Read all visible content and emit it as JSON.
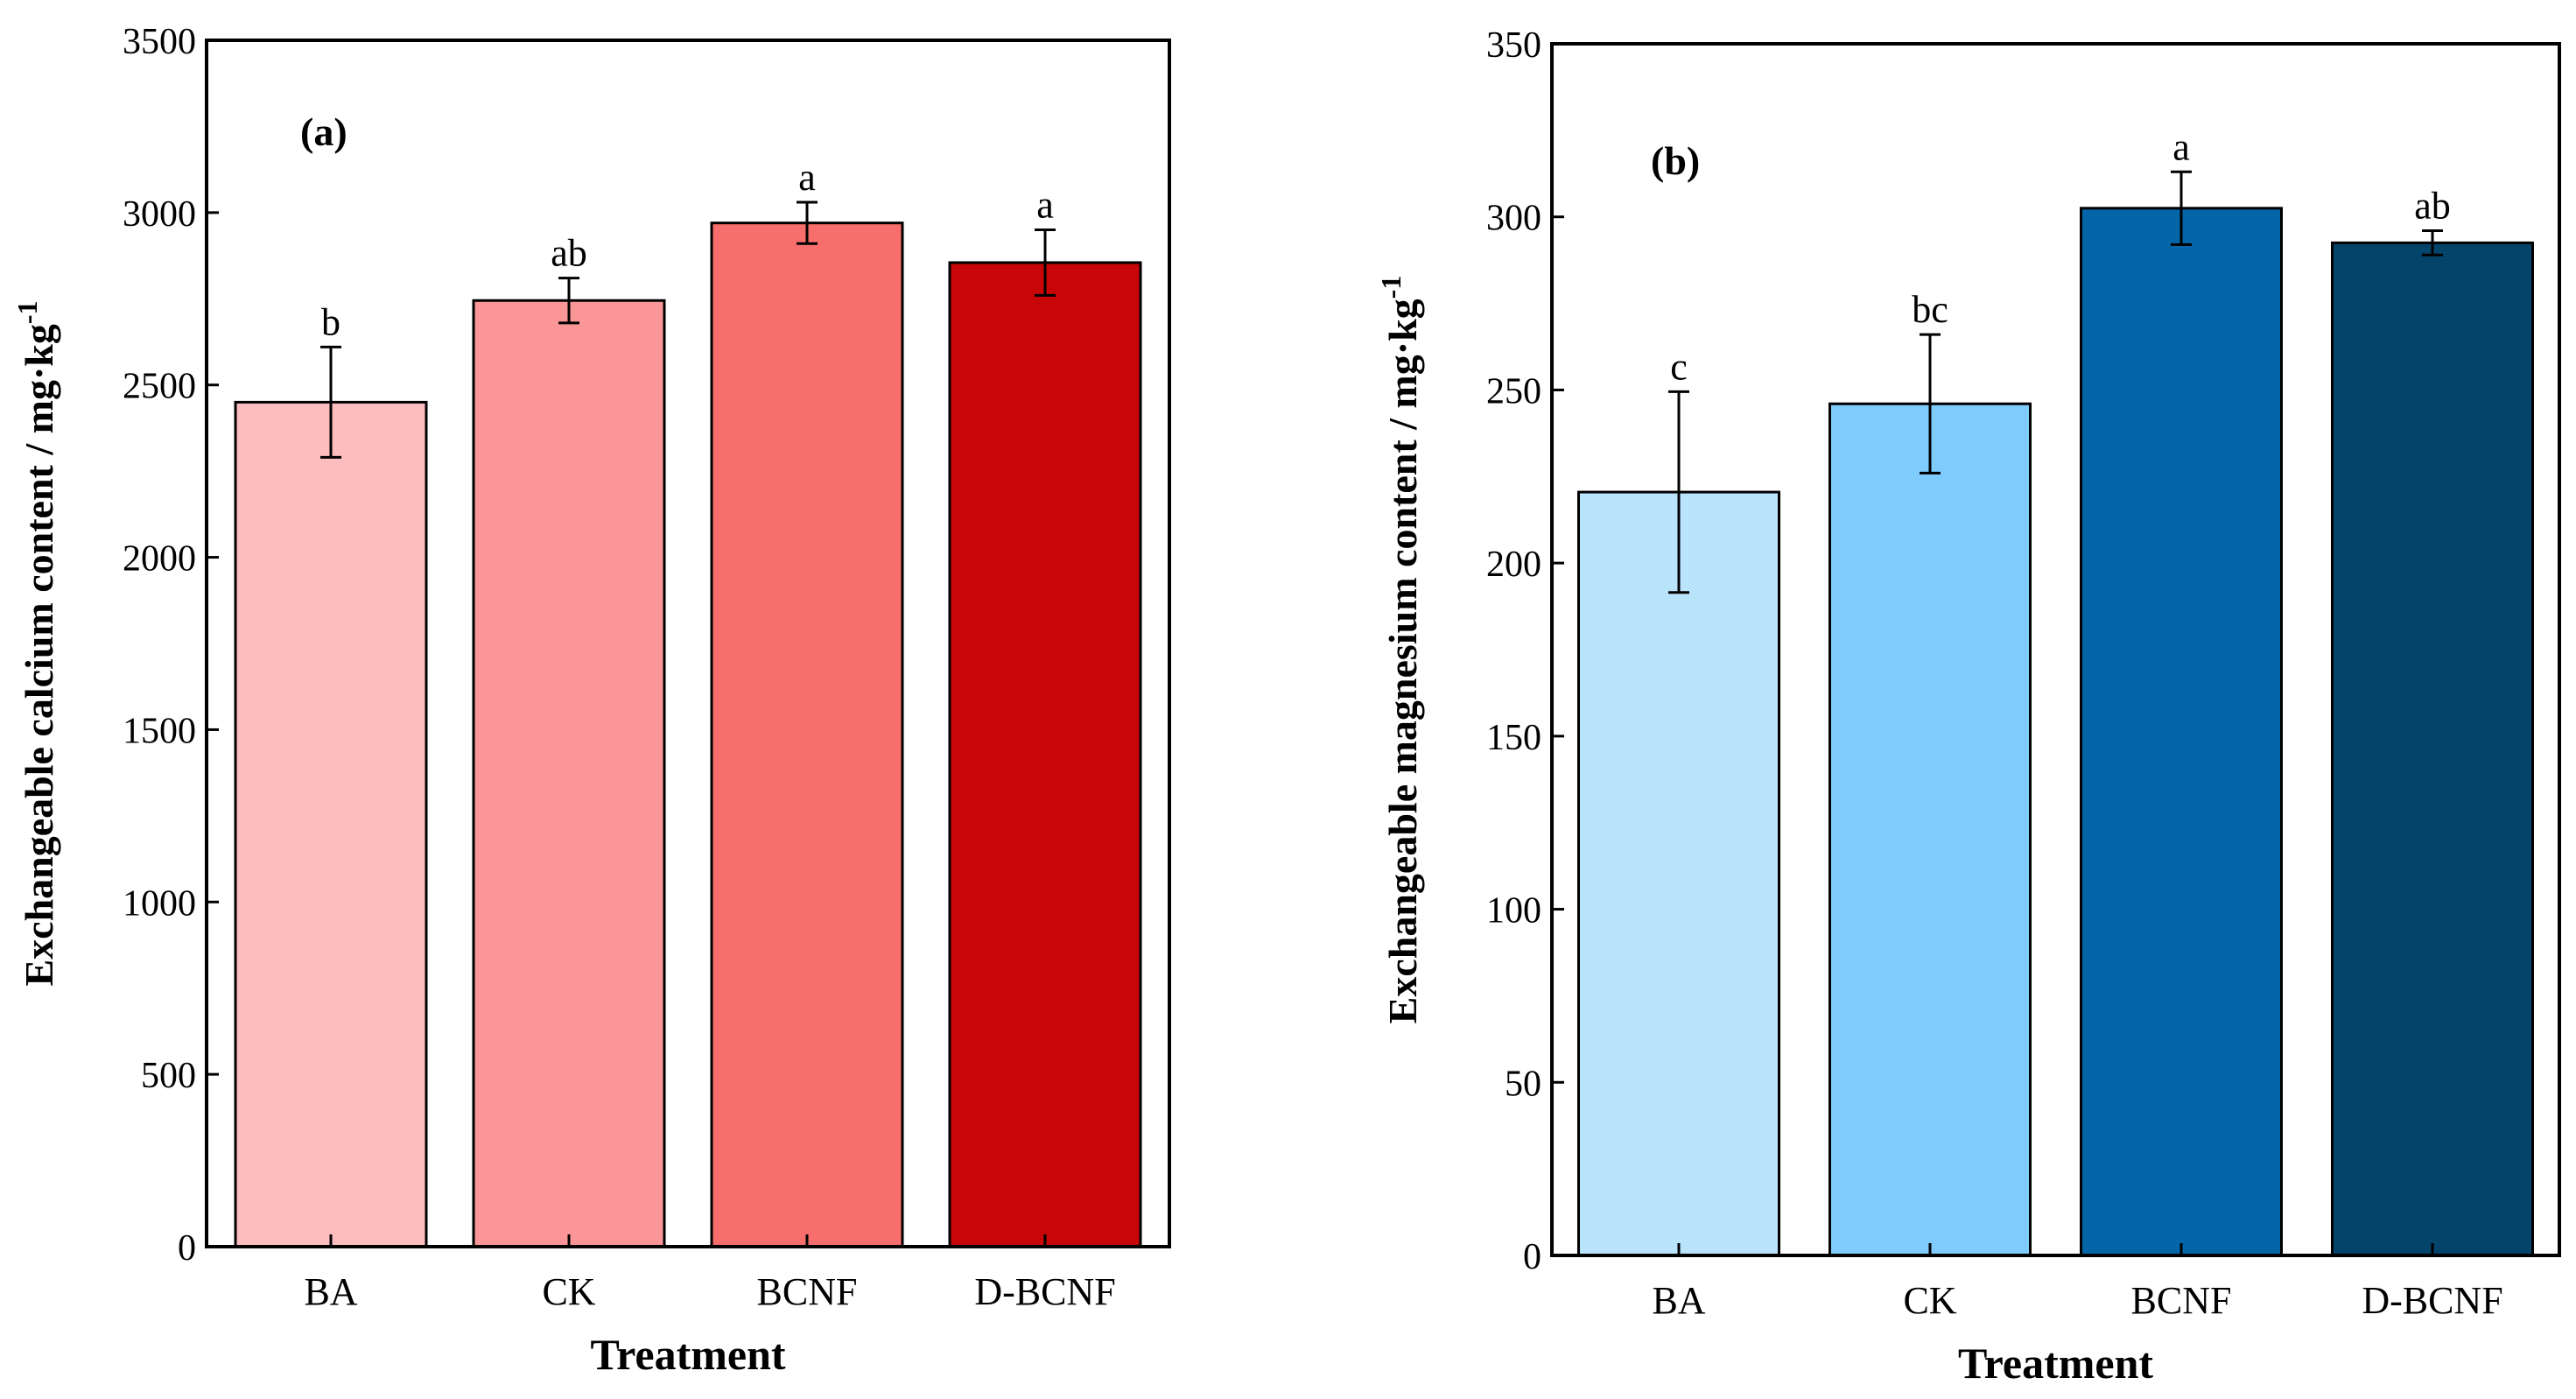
{
  "chart_data": [
    {
      "type": "bar",
      "panel_label": "(a)",
      "categories": [
        "BA",
        "CK",
        "BCNF",
        "D-BCNF"
      ],
      "values": [
        2450,
        2745,
        2970,
        2855
      ],
      "errors": [
        160,
        65,
        60,
        95
      ],
      "significance": [
        "b",
        "ab",
        "a",
        "a"
      ],
      "colors": [
        "#FCBDBE",
        "#FA9697",
        "#F76E6D",
        "#C80608"
      ],
      "xlabel": "Treatment",
      "ylabel_main": "Exchangeable calcium content / mg·kg",
      "ylabel_sup": "-1",
      "ylim": [
        0,
        3500
      ],
      "yticks": [
        "0",
        "500",
        "1000",
        "1500",
        "2000",
        "2500",
        "3000",
        "3500"
      ]
    },
    {
      "type": "bar",
      "panel_label": "(b)",
      "categories": [
        "BA",
        "CK",
        "BCNF",
        "D-BCNF"
      ],
      "values": [
        220.5,
        246,
        302.5,
        292.5
      ],
      "errors": [
        29,
        20,
        10.5,
        3.5
      ],
      "significance": [
        "c",
        "bc",
        "a",
        "ab"
      ],
      "colors": [
        "#BAE4FC",
        "#7FCCFC",
        "#0466A9",
        "#04446B"
      ],
      "xlabel": "Treatment",
      "ylabel_main": "Exchangeable magnesium content / mg·kg",
      "ylabel_sup": "-1",
      "ylim": [
        0,
        350
      ],
      "yticks": [
        "0",
        "50",
        "100",
        "150",
        "200",
        "250",
        "300",
        "350"
      ]
    }
  ]
}
